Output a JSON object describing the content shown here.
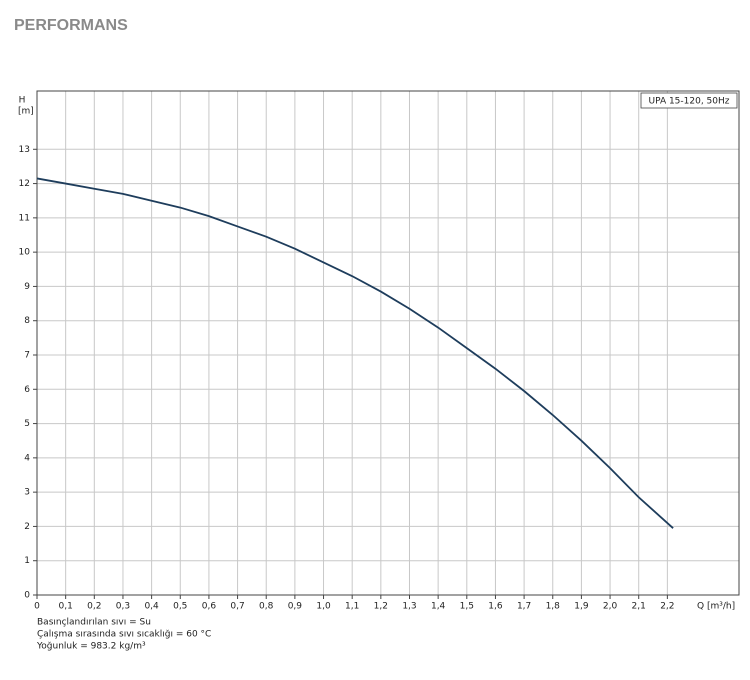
{
  "chart_data": {
    "type": "line",
    "title": "PERFORMANS",
    "y_label_lines": [
      "H",
      "[m]"
    ],
    "x_label": "Q [m³/h]",
    "x": [
      0,
      0.1,
      0.2,
      0.3,
      0.4,
      0.5,
      0.6,
      0.7,
      0.8,
      0.9,
      1.0,
      1.1,
      1.2,
      1.3,
      1.4,
      1.5,
      1.6,
      1.7,
      1.8,
      1.9,
      2.0,
      2.1,
      2.22
    ],
    "series": [
      {
        "name": "UPA 15-120, 50Hz",
        "color": "#1e3d5c",
        "values": [
          12.15,
          12.0,
          11.85,
          11.7,
          11.5,
          11.3,
          11.05,
          10.75,
          10.45,
          10.1,
          9.7,
          9.3,
          8.85,
          8.35,
          7.8,
          7.2,
          6.6,
          5.95,
          5.25,
          4.5,
          3.7,
          2.85,
          1.95
        ]
      }
    ],
    "xlim": [
      0,
      2.45
    ],
    "ylim": [
      0,
      14.7
    ],
    "xticks": [
      0,
      {
        "value": 0.1,
        "label": "0,1"
      },
      {
        "value": 0.2,
        "label": "0,2"
      },
      {
        "value": 0.3,
        "label": "0,3"
      },
      {
        "value": 0.4,
        "label": "0,4"
      },
      {
        "value": 0.5,
        "label": "0,5"
      },
      {
        "value": 0.6,
        "label": "0,6"
      },
      {
        "value": 0.7,
        "label": "0,7"
      },
      {
        "value": 0.8,
        "label": "0,8"
      },
      {
        "value": 0.9,
        "label": "0,9"
      },
      {
        "value": 1.0,
        "label": "1,0"
      },
      {
        "value": 1.1,
        "label": "1,1"
      },
      {
        "value": 1.2,
        "label": "1,2"
      },
      {
        "value": 1.3,
        "label": "1,3"
      },
      {
        "value": 1.4,
        "label": "1,4"
      },
      {
        "value": 1.5,
        "label": "1,5"
      },
      {
        "value": 1.6,
        "label": "1,6"
      },
      {
        "value": 1.7,
        "label": "1,7"
      },
      {
        "value": 1.8,
        "label": "1,8"
      },
      {
        "value": 1.9,
        "label": "1,9"
      },
      {
        "value": 2.0,
        "label": "2,0"
      },
      {
        "value": 2.1,
        "label": "2,1"
      },
      {
        "value": 2.2,
        "label": "2,2"
      }
    ],
    "yticks": [
      0,
      1,
      2,
      3,
      4,
      5,
      6,
      7,
      8,
      9,
      10,
      11,
      12,
      13
    ],
    "grid": true,
    "legend": "top-right",
    "notes": [
      "Basınçlandırılan sıvı = Su",
      "Çalışma sırasında sıvı sıcaklığı = 60 °C",
      "Yoğunluk = 983.2 kg/m³"
    ]
  }
}
